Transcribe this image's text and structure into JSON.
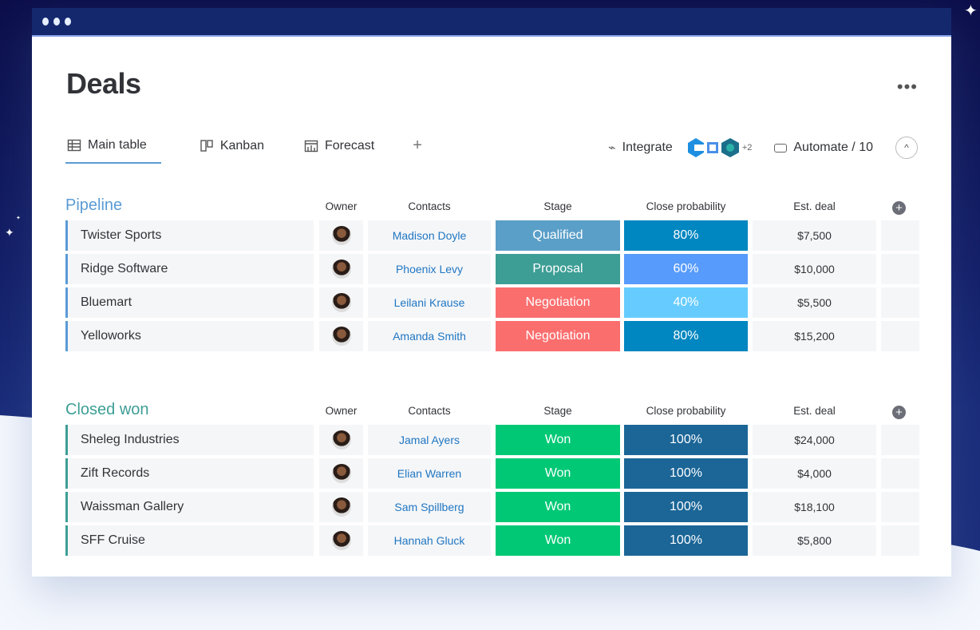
{
  "page": {
    "title": "Deals",
    "more_label": "•••"
  },
  "tabs": [
    {
      "label": "Main table",
      "icon": "table-icon"
    },
    {
      "label": "Kanban",
      "icon": "kanban-icon"
    },
    {
      "label": "Forecast",
      "icon": "chart-icon"
    }
  ],
  "add_tab": "+",
  "toolbar": {
    "integrate": "Integrate",
    "integration_more": "+2",
    "automate": "Automate / 10",
    "collapse": "^"
  },
  "columns": {
    "owner": "Owner",
    "contacts": "Contacts",
    "stage": "Stage",
    "probability": "Close probability",
    "est": "Est. deal",
    "add": "+"
  },
  "groups": [
    {
      "title": "Pipeline",
      "color": "#5b9bd5",
      "rows": [
        {
          "name": "Twister Sports",
          "contact": "Madison Doyle",
          "stage": "Qualified",
          "stage_color": "#5a9fc8",
          "prob": "80%",
          "prob_color": "#0086c0",
          "est": "$7,500"
        },
        {
          "name": "Ridge Software",
          "contact": "Phoenix Levy",
          "stage": "Proposal",
          "stage_color": "#3d9e95",
          "prob": "60%",
          "prob_color": "#579bfc",
          "est": "$10,000"
        },
        {
          "name": "Bluemart",
          "contact": "Leilani Krause",
          "stage": "Negotiation",
          "stage_color": "#fb6e6e",
          "prob": "40%",
          "prob_color": "#66ccff",
          "est": "$5,500"
        },
        {
          "name": "Yelloworks",
          "contact": "Amanda Smith",
          "stage": "Negotiation",
          "stage_color": "#fb6e6e",
          "prob": "80%",
          "prob_color": "#0086c0",
          "est": "$15,200"
        }
      ]
    },
    {
      "title": "Closed won",
      "color": "#3d9e95",
      "rows": [
        {
          "name": "Sheleg Industries",
          "contact": "Jamal Ayers",
          "stage": "Won",
          "stage_color": "#00c875",
          "prob": "100%",
          "prob_color": "#1b6697",
          "est": "$24,000"
        },
        {
          "name": "Zift Records",
          "contact": "Elian Warren",
          "stage": "Won",
          "stage_color": "#00c875",
          "prob": "100%",
          "prob_color": "#1b6697",
          "est": "$4,000"
        },
        {
          "name": "Waissman Gallery",
          "contact": "Sam Spillberg",
          "stage": "Won",
          "stage_color": "#00c875",
          "prob": "100%",
          "prob_color": "#1b6697",
          "est": "$18,100"
        },
        {
          "name": "SFF Cruise",
          "contact": "Hannah Gluck",
          "stage": "Won",
          "stage_color": "#00c875",
          "prob": "100%",
          "prob_color": "#1b6697",
          "est": "$5,800"
        }
      ]
    }
  ]
}
